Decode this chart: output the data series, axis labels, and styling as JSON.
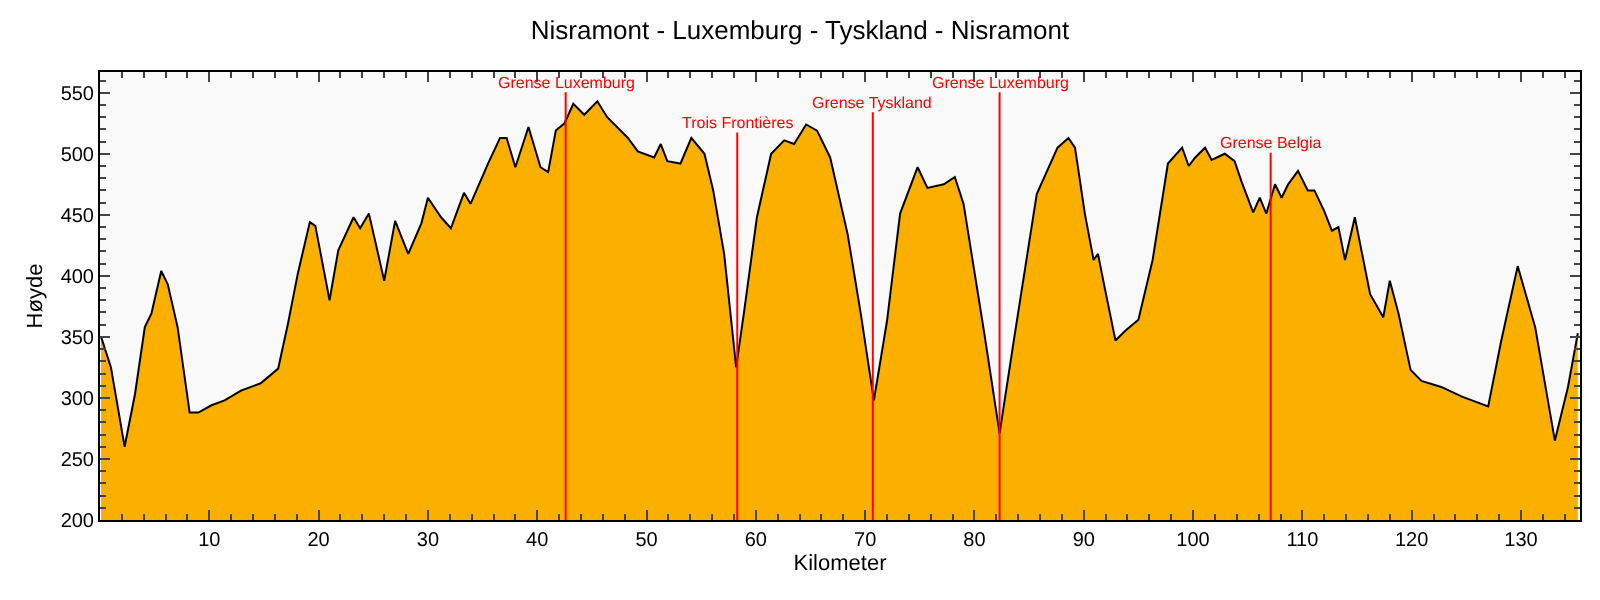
{
  "chart_data": {
    "type": "area",
    "title": "Nisramont - Luxemburg - Tyskland - Nisramont",
    "xlabel": "Kilometer",
    "ylabel": "Høyde",
    "x": [
      0.1,
      1,
      2.25,
      3.2,
      4.1,
      4.7,
      5.6,
      6.2,
      7.1,
      8.2,
      9,
      10.2,
      11.4,
      12.9,
      14.7,
      16.3,
      17.2,
      18.1,
      19.2,
      19.7,
      21,
      21.8,
      23.2,
      23.8,
      24.6,
      26,
      27,
      28.2,
      29.4,
      30,
      31.2,
      32.1,
      33.3,
      33.9,
      35.5,
      36.6,
      37.2,
      38,
      39.2,
      40.3,
      41,
      41.7,
      42.5,
      43.3,
      44.3,
      45.5,
      46.4,
      48.3,
      49.2,
      50.7,
      51.3,
      51.9,
      53.1,
      54.1,
      55.3,
      56.1,
      57.1,
      58.2,
      58.9,
      60.1,
      61.4,
      62.6,
      63.5,
      64.6,
      65.6,
      66.8,
      68.4,
      69.6,
      70.8,
      72,
      73.2,
      74.8,
      75.7,
      77.2,
      78.2,
      79,
      80.9,
      82.3,
      83.6,
      85.7,
      87.6,
      88.6,
      89.2,
      90.1,
      90.9,
      91.3,
      91.9,
      92.9,
      93.8,
      95,
      96.3,
      97.7,
      99,
      99.6,
      100.2,
      101.1,
      101.7,
      102.9,
      103.8,
      104.4,
      105.5,
      106.1,
      106.7,
      107.5,
      108.1,
      108.7,
      109.6,
      110.5,
      111.1,
      112,
      112.7,
      113.3,
      113.9,
      114.8,
      116.2,
      117.4,
      118,
      118.8,
      119.9,
      120.9,
      122.7,
      124.6,
      127,
      128.2,
      129.7,
      131.3,
      133.1,
      134.3,
      135.2
    ],
    "series": [
      {
        "color": "#fbb000",
        "values": [
          350,
          325,
          260,
          303,
          358,
          369,
          404,
          393,
          358,
          288,
          288,
          294,
          298,
          306,
          312,
          324,
          361,
          402,
          444,
          441,
          380,
          421,
          448,
          439,
          451,
          396,
          445,
          418,
          443,
          464,
          448,
          439,
          468,
          459,
          492,
          513,
          513,
          489,
          522,
          489,
          485,
          519,
          525,
          541,
          532,
          543,
          530,
          513,
          502,
          497,
          508,
          494,
          492,
          513,
          500,
          470,
          418,
          325,
          369,
          448,
          500,
          511,
          508,
          524,
          519,
          497,
          434,
          369,
          298,
          363,
          451,
          489,
          472,
          475,
          481,
          459,
          353,
          271,
          347,
          467,
          505,
          513,
          505,
          451,
          413,
          418,
          391,
          347,
          355,
          364,
          413,
          492,
          505,
          490,
          497,
          505,
          495,
          500,
          494,
          478,
          452,
          464,
          451,
          475,
          464,
          475,
          486,
          470,
          470,
          453,
          437,
          440,
          413,
          448,
          385,
          366,
          396,
          369,
          323,
          314,
          309,
          301,
          293,
          347,
          408,
          358,
          265,
          309,
          353
        ]
      }
    ],
    "xlim": [
      0,
      135.4
    ],
    "ylim": [
      200,
      567
    ],
    "xticks": [
      10,
      20,
      30,
      40,
      50,
      60,
      70,
      80,
      90,
      100,
      110,
      120,
      130
    ],
    "yticks": [
      200,
      250,
      300,
      350,
      400,
      450,
      500,
      550
    ],
    "ref_lines": [
      {
        "axis": "x",
        "value": 42.6,
        "label": "Grense Luxemburg",
        "color": "#ff0000"
      },
      {
        "axis": "x",
        "value": 58.3,
        "label": "Trois Frontières",
        "color": "#ff0000"
      },
      {
        "axis": "x",
        "value": 70.7,
        "label": "Grense Tyskland",
        "color": "#ff0000"
      },
      {
        "axis": "x",
        "value": 82.3,
        "label": "Grense Luxemburg",
        "color": "#ff0000"
      },
      {
        "axis": "x",
        "value": 107.1,
        "label": "Grense Belgia",
        "color": "#ff0000"
      }
    ],
    "grid": false
  }
}
